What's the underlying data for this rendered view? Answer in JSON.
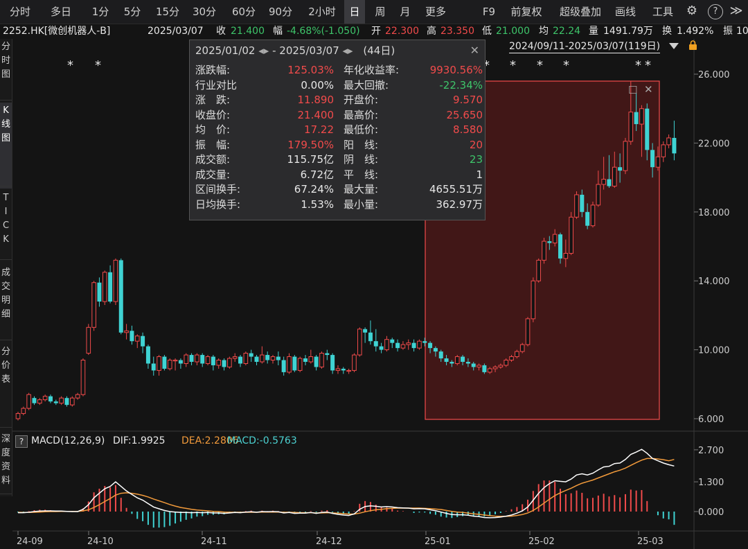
{
  "toolbar": {
    "periods": [
      "分时",
      "多日",
      "1分",
      "5分",
      "15分",
      "30分",
      "60分",
      "90分",
      "2小时",
      "日",
      "周",
      "月",
      "更多"
    ],
    "active_period": "日",
    "right_items": [
      "F9",
      "前复权",
      "超级叠加",
      "画线",
      "工具"
    ],
    "settings_icon": "gear-icon",
    "help_icon": "question-icon",
    "expand_icon": "double-chevron-right-icon"
  },
  "info": {
    "code": "2252.HK[微创机器人-B]",
    "date": "2025/03/07",
    "close_label": "收",
    "close": "21.400",
    "change_label": "幅",
    "change": "-4.68%(-1.050)",
    "open_label": "开",
    "open": "22.300",
    "high_label": "高",
    "high": "23.350",
    "low_label": "低",
    "low": "21.000",
    "avg_label": "均",
    "avg": "22.24",
    "vol_label": "量",
    "vol": "1491.79万",
    "turn_label": "换",
    "turn": "1.492%",
    "amp_label": "振",
    "amp": "10"
  },
  "sidebar": [
    {
      "label": "分时图",
      "active": false
    },
    {
      "label": "K线图",
      "active": true
    },
    {
      "label": "TICK",
      "active": false
    },
    {
      "label": "成交明细",
      "active": false
    },
    {
      "label": "分价表",
      "active": false
    },
    {
      "label": "深度资料",
      "active": false
    }
  ],
  "range_label": "2024/09/11-2025/03/07(119日)",
  "popup": {
    "start": "2025/01/02",
    "end": "2025/03/07",
    "days": "(44日)",
    "rows_left": [
      {
        "label": "涨跌幅:",
        "value": "125.03%",
        "color": "red"
      },
      {
        "label": "行业对比",
        "value": "0.00%",
        "color": "white"
      },
      {
        "label": "涨　跌:",
        "value": "11.890",
        "color": "red"
      },
      {
        "label": "收盘价:",
        "value": "21.400",
        "color": "red"
      },
      {
        "label": "均　价:",
        "value": "17.22",
        "color": "red"
      },
      {
        "label": "振　幅:",
        "value": "179.50%",
        "color": "red"
      },
      {
        "label": "成交额:",
        "value": "115.75亿",
        "color": "white"
      },
      {
        "label": "成交量:",
        "value": "6.72亿",
        "color": "white"
      },
      {
        "label": "区间换手:",
        "value": "67.24%",
        "color": "white"
      },
      {
        "label": "日均换手:",
        "value": "1.53%",
        "color": "white"
      }
    ],
    "rows_right": [
      {
        "label": "年化收益率:",
        "value": "9930.56%",
        "color": "red"
      },
      {
        "label": "最大回撤:",
        "value": "-22.34%",
        "color": "green"
      },
      {
        "label": "开盘价:",
        "value": "9.570",
        "color": "red"
      },
      {
        "label": "最高价:",
        "value": "25.650",
        "color": "red"
      },
      {
        "label": "最低价:",
        "value": "8.580",
        "color": "red"
      },
      {
        "label": "阳　线:",
        "value": "20",
        "color": "red"
      },
      {
        "label": "阴　线:",
        "value": "23",
        "color": "green"
      },
      {
        "label": "平　线:",
        "value": "1",
        "color": "white"
      },
      {
        "label": "最大量:",
        "value": "4655.51万",
        "color": "white"
      },
      {
        "label": "最小量:",
        "value": "362.97万",
        "color": "white"
      }
    ]
  },
  "price_axis": {
    "ticks": [
      "26.000",
      "22.000",
      "18.000",
      "14.000",
      "10.000",
      "6.000"
    ],
    "values": [
      26,
      22,
      18,
      14,
      10,
      6
    ]
  },
  "macd": {
    "label": "MACD(12,26,9)",
    "dif_label": "DIF:1.9925",
    "dea_label": "DEA:2.2806",
    "macd_label": "MACD:-0.5763",
    "ticks": [
      "2.700",
      "1.300",
      "0.000"
    ],
    "values": [
      2.7,
      1.3,
      0
    ]
  },
  "x_axis": [
    "24-09",
    "24-10",
    "24-11",
    "24-12",
    "25-01",
    "25-02",
    "25-03"
  ],
  "star_char": "*",
  "colors": {
    "up": "#f24b4b",
    "down": "#3fd3d3",
    "dif": "#ffffff",
    "dea": "#f39b3b",
    "selection": "#f24b4b"
  },
  "chart_data": {
    "type": "candlestick",
    "title": "2252.HK[微创机器人-B]",
    "ylim": [
      6,
      26
    ],
    "candles": [
      [
        6.0,
        6.3,
        5.9,
        6.4
      ],
      [
        6.3,
        6.6,
        6.2,
        6.7
      ],
      [
        6.6,
        7.4,
        6.5,
        7.5
      ],
      [
        7.2,
        6.9,
        6.8,
        7.3
      ],
      [
        6.9,
        7.1,
        6.8,
        7.2
      ],
      [
        7.1,
        7.3,
        7.0,
        7.4
      ],
      [
        7.3,
        7.0,
        6.9,
        7.4
      ],
      [
        7.0,
        6.9,
        6.8,
        7.1
      ],
      [
        6.9,
        7.2,
        6.8,
        7.3
      ],
      [
        7.2,
        6.8,
        6.7,
        7.3
      ],
      [
        6.8,
        7.2,
        6.7,
        7.3
      ],
      [
        7.2,
        7.4,
        7.1,
        7.5
      ],
      [
        7.4,
        9.4,
        7.3,
        9.5
      ],
      [
        9.8,
        11.3,
        9.7,
        11.5
      ],
      [
        11.3,
        13.9,
        11.1,
        14.0
      ],
      [
        13.9,
        12.8,
        12.5,
        14.2
      ],
      [
        12.8,
        14.5,
        12.6,
        14.6
      ],
      [
        14.5,
        12.8,
        12.7,
        14.9
      ],
      [
        12.8,
        15.2,
        12.6,
        15.3
      ],
      [
        15.2,
        11.0,
        10.9,
        15.3
      ],
      [
        11.0,
        11.1,
        10.6,
        11.5
      ],
      [
        11.1,
        10.5,
        10.3,
        11.4
      ],
      [
        10.5,
        10.8,
        10.1,
        10.9
      ],
      [
        10.8,
        10.2,
        9.8,
        11.0
      ],
      [
        10.2,
        9.2,
        8.9,
        10.3
      ],
      [
        9.2,
        8.8,
        8.5,
        9.6
      ],
      [
        8.8,
        9.6,
        8.5,
        9.7
      ],
      [
        9.6,
        8.9,
        8.8,
        9.7
      ],
      [
        8.9,
        9.4,
        8.8,
        9.5
      ],
      [
        9.4,
        9.4,
        8.8,
        9.5
      ],
      [
        9.4,
        9.2,
        8.9,
        9.5
      ],
      [
        9.2,
        9.7,
        9.0,
        9.8
      ],
      [
        9.7,
        9.3,
        9.1,
        9.8
      ],
      [
        9.3,
        9.7,
        9.1,
        9.8
      ],
      [
        9.7,
        9.2,
        9.0,
        9.8
      ],
      [
        9.2,
        9.6,
        9.1,
        9.7
      ],
      [
        9.6,
        9.1,
        8.8,
        9.7
      ],
      [
        9.1,
        9.4,
        8.9,
        9.5
      ],
      [
        9.4,
        9.0,
        8.8,
        9.5
      ],
      [
        9.0,
        9.5,
        8.9,
        9.6
      ],
      [
        9.5,
        9.6,
        9.3,
        9.8
      ],
      [
        9.6,
        9.2,
        9.0,
        9.7
      ],
      [
        9.2,
        9.8,
        9.1,
        9.9
      ],
      [
        9.8,
        9.6,
        9.3,
        10.0
      ],
      [
        9.6,
        9.3,
        9.1,
        9.7
      ],
      [
        9.3,
        9.7,
        9.2,
        10.2
      ],
      [
        9.7,
        9.4,
        9.2,
        9.9
      ],
      [
        9.4,
        9.6,
        9.2,
        9.7
      ],
      [
        9.6,
        9.4,
        9.1,
        9.9
      ],
      [
        9.4,
        8.7,
        8.5,
        9.6
      ],
      [
        8.7,
        9.6,
        8.6,
        9.8
      ],
      [
        9.6,
        8.8,
        8.7,
        9.7
      ],
      [
        8.8,
        9.5,
        8.7,
        9.6
      ],
      [
        9.5,
        9.3,
        9.1,
        9.7
      ],
      [
        9.3,
        9.6,
        9.2,
        10.0
      ],
      [
        9.6,
        9.0,
        8.8,
        9.7
      ],
      [
        9.0,
        9.8,
        8.9,
        9.9
      ],
      [
        9.8,
        9.7,
        9.4,
        10.0
      ],
      [
        9.7,
        8.8,
        8.6,
        9.8
      ],
      [
        8.8,
        8.9,
        8.6,
        9.1
      ],
      [
        8.9,
        8.8,
        8.6,
        9.0
      ],
      [
        8.8,
        8.8,
        8.6,
        8.9
      ],
      [
        8.8,
        9.7,
        8.7,
        9.8
      ],
      [
        9.7,
        11.2,
        9.6,
        11.3
      ],
      [
        11.2,
        11.0,
        10.4,
        11.3
      ],
      [
        11.0,
        10.5,
        10.3,
        11.7
      ],
      [
        10.5,
        10.2,
        9.9,
        11.2
      ],
      [
        10.2,
        10.0,
        9.8,
        10.4
      ],
      [
        10.0,
        10.6,
        9.9,
        10.8
      ],
      [
        10.6,
        10.4,
        10.1,
        10.7
      ],
      [
        10.4,
        10.1,
        9.9,
        10.6
      ],
      [
        10.1,
        10.3,
        10.0,
        10.5
      ],
      [
        10.3,
        10.4,
        10.0,
        10.6
      ],
      [
        10.4,
        10.1,
        9.9,
        10.6
      ],
      [
        10.1,
        10.5,
        10.0,
        10.6
      ],
      [
        10.5,
        10.4,
        10.2,
        10.7
      ],
      [
        10.4,
        10.1,
        9.8,
        10.5
      ],
      [
        10.1,
        9.9,
        9.6,
        10.2
      ],
      [
        9.9,
        9.5,
        9.3,
        10.0
      ],
      [
        9.5,
        9.3,
        9.1,
        9.7
      ],
      [
        9.3,
        9.2,
        9.0,
        9.4
      ],
      [
        9.2,
        9.6,
        9.1,
        9.7
      ],
      [
        9.6,
        9.3,
        9.1,
        9.7
      ],
      [
        9.3,
        9.2,
        9.0,
        9.5
      ],
      [
        9.2,
        9.0,
        8.8,
        9.3
      ],
      [
        9.0,
        9.1,
        8.8,
        9.2
      ],
      [
        9.1,
        8.7,
        8.6,
        9.2
      ],
      [
        8.7,
        8.9,
        8.6,
        9.0
      ],
      [
        8.9,
        9.0,
        8.7,
        9.1
      ],
      [
        9.0,
        9.1,
        8.9,
        9.2
      ],
      [
        9.1,
        9.4,
        9.0,
        9.5
      ],
      [
        9.4,
        9.6,
        9.3,
        9.7
      ],
      [
        9.6,
        9.9,
        9.5,
        10.0
      ],
      [
        9.9,
        10.3,
        9.8,
        10.4
      ],
      [
        10.3,
        11.8,
        10.2,
        11.9
      ],
      [
        11.8,
        14.0,
        11.6,
        14.2
      ],
      [
        14.0,
        15.2,
        13.9,
        15.3
      ],
      [
        15.2,
        16.3,
        15.0,
        16.5
      ],
      [
        16.3,
        16.2,
        15.8,
        16.6
      ],
      [
        16.2,
        16.7,
        16.0,
        17.0
      ],
      [
        16.7,
        15.3,
        15.0,
        16.8
      ],
      [
        15.3,
        15.6,
        14.8,
        16.4
      ],
      [
        15.6,
        17.7,
        15.5,
        18.0
      ],
      [
        17.7,
        19.0,
        17.6,
        19.2
      ],
      [
        19.0,
        18.0,
        17.7,
        19.3
      ],
      [
        18.0,
        17.2,
        17.0,
        18.5
      ],
      [
        17.2,
        18.4,
        17.1,
        18.6
      ],
      [
        18.4,
        19.6,
        18.3,
        20.4
      ],
      [
        19.6,
        19.9,
        19.3,
        21.2
      ],
      [
        19.9,
        19.5,
        19.4,
        21.3
      ],
      [
        19.5,
        20.6,
        19.4,
        21.5
      ],
      [
        20.6,
        20.4,
        19.7,
        21.4
      ],
      [
        20.4,
        22.1,
        20.2,
        22.3
      ],
      [
        22.1,
        23.8,
        21.9,
        25.6
      ],
      [
        23.8,
        23.1,
        22.7,
        24.9
      ],
      [
        23.1,
        24.0,
        21.2,
        24.2
      ],
      [
        24.0,
        21.6,
        21.0,
        24.3
      ],
      [
        21.6,
        20.6,
        20.0,
        22.0
      ],
      [
        20.6,
        21.2,
        20.4,
        21.8
      ],
      [
        21.2,
        21.9,
        20.9,
        22.1
      ],
      [
        21.9,
        22.3,
        21.7,
        22.5
      ],
      [
        22.3,
        21.4,
        21.0,
        23.3
      ]
    ],
    "macd_dif": [
      -0.05,
      -0.05,
      -0.03,
      0.0,
      0.02,
      0.03,
      0.03,
      0.02,
      0.02,
      0.01,
      0.0,
      0.0,
      0.1,
      0.3,
      0.6,
      0.8,
      1.0,
      1.1,
      1.3,
      1.1,
      0.9,
      0.75,
      0.6,
      0.5,
      0.35,
      0.2,
      0.12,
      0.05,
      0.0,
      -0.02,
      -0.04,
      -0.04,
      -0.05,
      -0.04,
      -0.05,
      -0.04,
      -0.06,
      -0.06,
      -0.08,
      -0.06,
      -0.04,
      -0.05,
      -0.02,
      -0.01,
      -0.03,
      0.0,
      -0.01,
      0.0,
      -0.01,
      -0.06,
      -0.04,
      -0.08,
      -0.07,
      -0.07,
      -0.04,
      -0.08,
      -0.04,
      -0.02,
      -0.08,
      -0.12,
      -0.15,
      -0.17,
      -0.1,
      0.1,
      0.22,
      0.25,
      0.23,
      0.2,
      0.22,
      0.2,
      0.17,
      0.16,
      0.15,
      0.12,
      0.13,
      0.12,
      0.08,
      0.04,
      -0.02,
      -0.08,
      -0.13,
      -0.14,
      -0.14,
      -0.16,
      -0.2,
      -0.22,
      -0.26,
      -0.27,
      -0.26,
      -0.24,
      -0.2,
      -0.15,
      -0.07,
      0.03,
      0.2,
      0.5,
      0.8,
      1.05,
      1.22,
      1.35,
      1.32,
      1.3,
      1.42,
      1.6,
      1.65,
      1.6,
      1.68,
      1.82,
      1.95,
      1.98,
      2.1,
      2.12,
      2.28,
      2.5,
      2.6,
      2.72,
      2.55,
      2.32,
      2.22,
      2.12,
      2.05,
      1.99
    ],
    "macd_dea": [
      -0.03,
      -0.04,
      -0.04,
      -0.03,
      -0.02,
      -0.01,
      0.0,
      0.0,
      0.01,
      0.01,
      0.01,
      0.01,
      0.03,
      0.08,
      0.18,
      0.3,
      0.44,
      0.57,
      0.72,
      0.8,
      0.82,
      0.8,
      0.76,
      0.71,
      0.64,
      0.55,
      0.47,
      0.39,
      0.31,
      0.24,
      0.18,
      0.14,
      0.1,
      0.07,
      0.05,
      0.03,
      0.01,
      0.0,
      -0.02,
      -0.03,
      -0.03,
      -0.03,
      -0.03,
      -0.03,
      -0.03,
      -0.02,
      -0.02,
      -0.02,
      -0.02,
      -0.03,
      -0.03,
      -0.04,
      -0.05,
      -0.05,
      -0.05,
      -0.06,
      -0.06,
      -0.05,
      -0.06,
      -0.07,
      -0.09,
      -0.11,
      -0.11,
      -0.07,
      -0.01,
      0.04,
      0.08,
      0.1,
      0.13,
      0.14,
      0.15,
      0.15,
      0.15,
      0.15,
      0.15,
      0.14,
      0.13,
      0.11,
      0.09,
      0.05,
      0.01,
      -0.02,
      -0.04,
      -0.07,
      -0.1,
      -0.12,
      -0.15,
      -0.18,
      -0.2,
      -0.21,
      -0.21,
      -0.2,
      -0.17,
      -0.13,
      -0.06,
      0.05,
      0.2,
      0.37,
      0.54,
      0.7,
      0.82,
      0.92,
      1.02,
      1.14,
      1.24,
      1.31,
      1.38,
      1.47,
      1.56,
      1.65,
      1.74,
      1.81,
      1.9,
      2.02,
      2.14,
      2.25,
      2.32,
      2.32,
      2.3,
      2.27,
      2.22,
      2.28
    ]
  }
}
